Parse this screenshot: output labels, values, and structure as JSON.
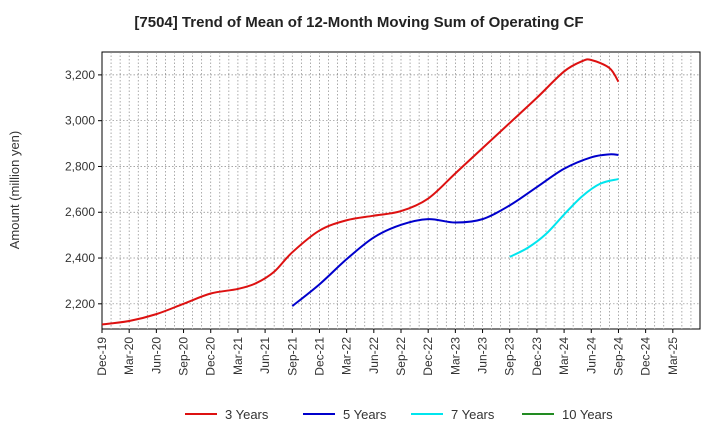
{
  "chart_data": {
    "type": "line",
    "title": "[7504]  Trend of Mean of 12-Month Moving Sum of Operating CF",
    "xlabel": "",
    "ylabel": "Amount (million yen)",
    "ylim": [
      2090,
      3300
    ],
    "yticks": [
      2200,
      2400,
      2600,
      2800,
      3000,
      3200
    ],
    "ytick_labels": [
      "2,200",
      "2,400",
      "2,600",
      "2,800",
      "3,000",
      "3,200"
    ],
    "x_tick_labels": [
      "Dec-19",
      "Mar-20",
      "Jun-20",
      "Sep-20",
      "Dec-20",
      "Mar-21",
      "Jun-21",
      "Sep-21",
      "Dec-21",
      "Mar-22",
      "Jun-22",
      "Sep-22",
      "Dec-22",
      "Mar-23",
      "Jun-23",
      "Sep-23",
      "Dec-23",
      "Mar-24",
      "Jun-24",
      "Sep-24",
      "Dec-24",
      "Mar-25"
    ],
    "x_tick_months": [
      0,
      3,
      6,
      9,
      12,
      15,
      18,
      21,
      24,
      27,
      30,
      33,
      36,
      39,
      42,
      45,
      48,
      51,
      54,
      57,
      60,
      63
    ],
    "x_range_months": [
      0,
      66
    ],
    "grid": true,
    "legend_position": "bottom",
    "series": [
      {
        "name": "3 Years",
        "color": "#dd1111",
        "x_months": [
          0,
          3,
          6,
          9,
          12,
          15,
          17,
          19,
          21,
          24,
          27,
          30,
          33,
          36,
          39,
          42,
          45,
          48,
          51,
          53,
          54,
          56,
          57
        ],
        "values": [
          2110,
          2125,
          2155,
          2200,
          2245,
          2265,
          2290,
          2340,
          2425,
          2520,
          2565,
          2585,
          2605,
          2660,
          2770,
          2880,
          2990,
          3100,
          3215,
          3260,
          3265,
          3230,
          3170
        ]
      },
      {
        "name": "5 Years",
        "color": "#0000cc",
        "x_months": [
          21,
          24,
          27,
          30,
          33,
          36,
          39,
          42,
          45,
          48,
          51,
          54,
          56,
          57
        ],
        "values": [
          2190,
          2285,
          2395,
          2490,
          2545,
          2570,
          2555,
          2570,
          2630,
          2710,
          2790,
          2840,
          2853,
          2850
        ]
      },
      {
        "name": "7 Years",
        "color": "#00e5ee",
        "x_months": [
          45,
          47,
          49,
          51,
          53,
          55,
          57
        ],
        "values": [
          2405,
          2445,
          2505,
          2590,
          2670,
          2725,
          2745
        ]
      },
      {
        "name": "10 Years",
        "color": "#228b22",
        "x_months": [],
        "values": []
      }
    ]
  }
}
